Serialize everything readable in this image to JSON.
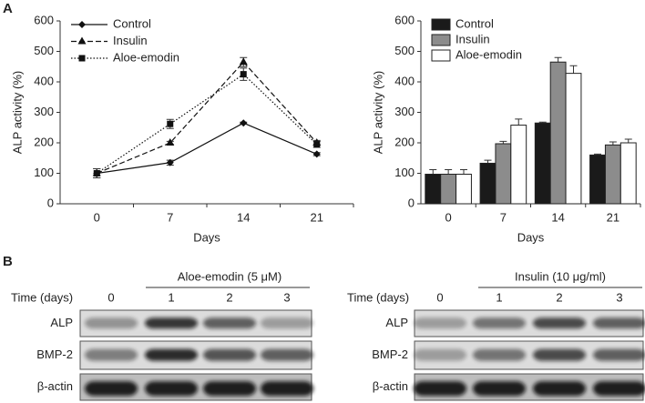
{
  "panel_labels": [
    "A",
    "B"
  ],
  "chart_data": [
    {
      "type": "line",
      "ylabel": "ALP activity (%)",
      "xlabel": "Days",
      "categories": [
        "0",
        "7",
        "14",
        "21"
      ],
      "ylim": [
        0,
        600
      ],
      "yticks": [
        0,
        100,
        200,
        300,
        400,
        500,
        600
      ],
      "legend": "top-left",
      "series": [
        {
          "name": "Control",
          "color": "#111111",
          "line_style": "solid",
          "marker": "diamond",
          "values": [
            100,
            135,
            265,
            163
          ],
          "errors": [
            15,
            8,
            3,
            5
          ]
        },
        {
          "name": "Insulin",
          "color": "#111111",
          "line_style": "dashed",
          "marker": "triangle",
          "values": [
            100,
            200,
            465,
            200
          ],
          "errors": [
            15,
            5,
            15,
            8
          ]
        },
        {
          "name": "Aloe-emodin",
          "color": "#111111",
          "line_style": "dotted",
          "marker": "square",
          "values": [
            100,
            262,
            425,
            195
          ],
          "errors": [
            15,
            15,
            20,
            10
          ]
        }
      ]
    },
    {
      "type": "bar",
      "ylabel": "ALP activity (%)",
      "xlabel": "Days",
      "categories": [
        "0",
        "7",
        "14",
        "21"
      ],
      "ylim": [
        0,
        600
      ],
      "yticks": [
        0,
        100,
        200,
        300,
        400,
        500,
        600
      ],
      "legend": "top-left",
      "series": [
        {
          "name": "Control",
          "color": "#1a1a1a",
          "values": [
            97,
            133,
            265,
            160
          ],
          "errors": [
            15,
            10,
            3,
            3
          ]
        },
        {
          "name": "Insulin",
          "color": "#8c8c8c",
          "values": [
            97,
            197,
            465,
            193
          ],
          "errors": [
            15,
            8,
            15,
            10
          ]
        },
        {
          "name": "Aloe-emodin",
          "color": "#ffffff",
          "values": [
            97,
            258,
            428,
            200
          ],
          "errors": [
            15,
            20,
            25,
            12
          ]
        }
      ]
    }
  ],
  "blots": [
    {
      "treatment": "Aloe-emodin (5 μM)",
      "time_label": "Time (days)",
      "lanes": [
        "0",
        "1",
        "2",
        "3"
      ],
      "rows": [
        "ALP",
        "BMP-2",
        "β-actin"
      ]
    },
    {
      "treatment": "Insulin (10 μg/ml)",
      "time_label": "Time (days)",
      "lanes": [
        "0",
        "1",
        "2",
        "3"
      ],
      "rows": [
        "ALP",
        "BMP-2",
        "β-actin"
      ]
    }
  ]
}
